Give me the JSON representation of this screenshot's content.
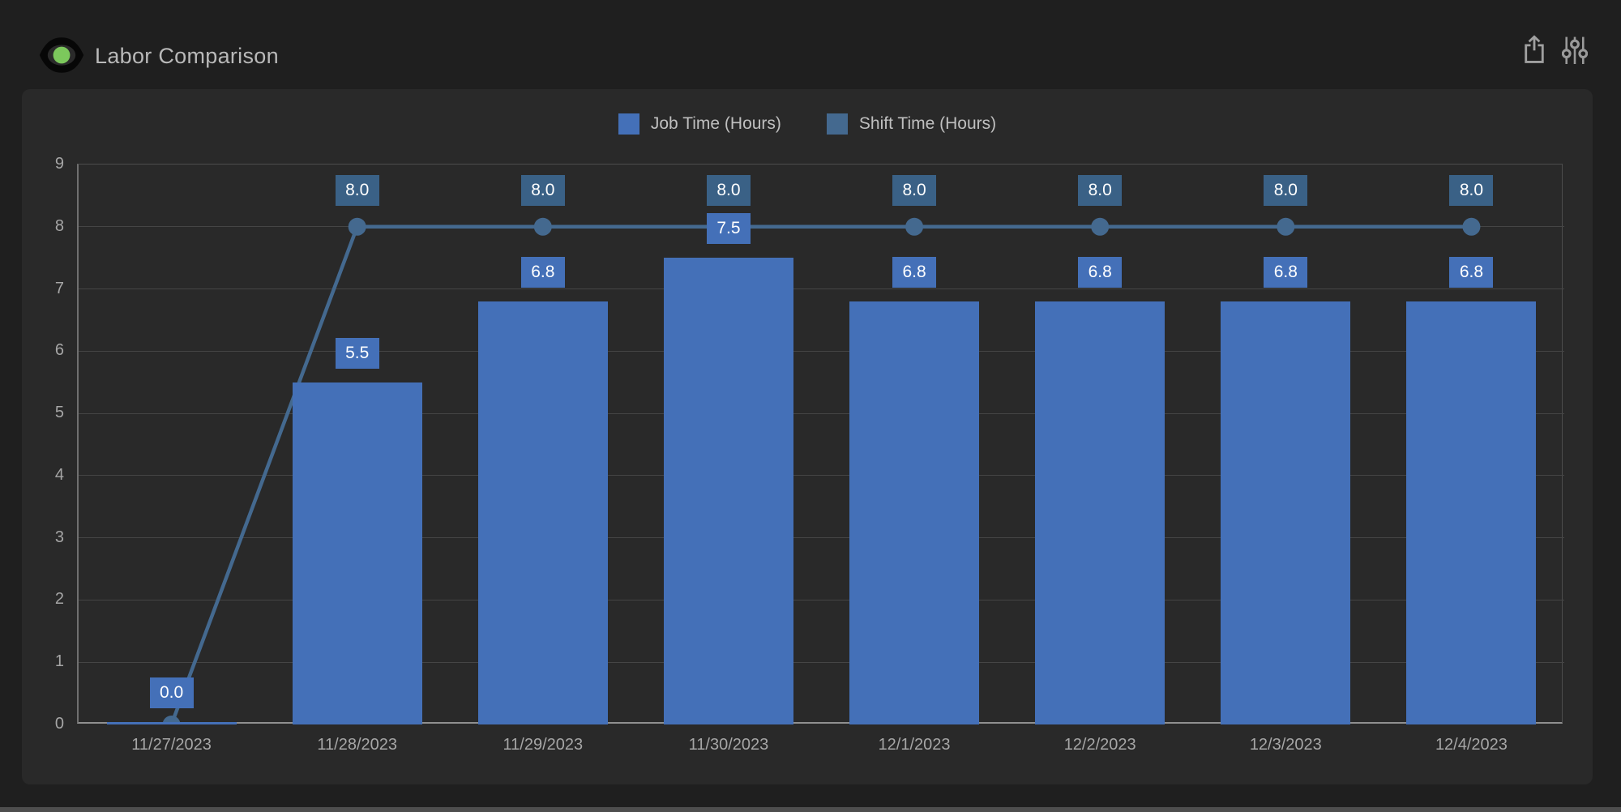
{
  "header": {
    "title": "Labor Comparison",
    "logo_pupil_color": "#7cc85c",
    "icons": [
      "eye-logo-icon",
      "share-export-icon",
      "filter-sliders-icon"
    ]
  },
  "colors": {
    "page_bg": "#1f1f1f",
    "panel_bg": "#292929",
    "grid": "#454545",
    "axis_text": "#a6a6a6",
    "legend_text": "#bfbfbf"
  },
  "chart_data": {
    "type": "bar+line combo",
    "title": "Labor Comparison",
    "categories": [
      "11/27/2023",
      "11/28/2023",
      "11/29/2023",
      "11/30/2023",
      "12/1/2023",
      "12/2/2023",
      "12/3/2023",
      "12/4/2023"
    ],
    "series": [
      {
        "name": "Job Time (Hours)",
        "type": "bar",
        "color": "#4470b8",
        "values": [
          0,
          5.5,
          6.8,
          7.5,
          6.8,
          6.8,
          6.8,
          6.8
        ],
        "labels": [
          "0.0",
          "5.5",
          "6.8",
          "7.5",
          "6.8",
          "6.8",
          "6.8",
          "6.8"
        ]
      },
      {
        "name": "Shift Time (Hours)",
        "type": "line",
        "color": "#44698f",
        "label_bg": "#3a6186",
        "values": [
          0,
          8,
          8,
          8,
          8,
          8,
          8,
          8
        ],
        "labels": [
          null,
          "8.0",
          "8.0",
          "8.0",
          "8.0",
          "8.0",
          "8.0",
          "8.0"
        ]
      }
    ],
    "ylim": [
      0,
      9
    ],
    "yticks": [
      0,
      1,
      2,
      3,
      4,
      5,
      6,
      7,
      8,
      9
    ],
    "grid": true,
    "legend_position": "top-center"
  }
}
